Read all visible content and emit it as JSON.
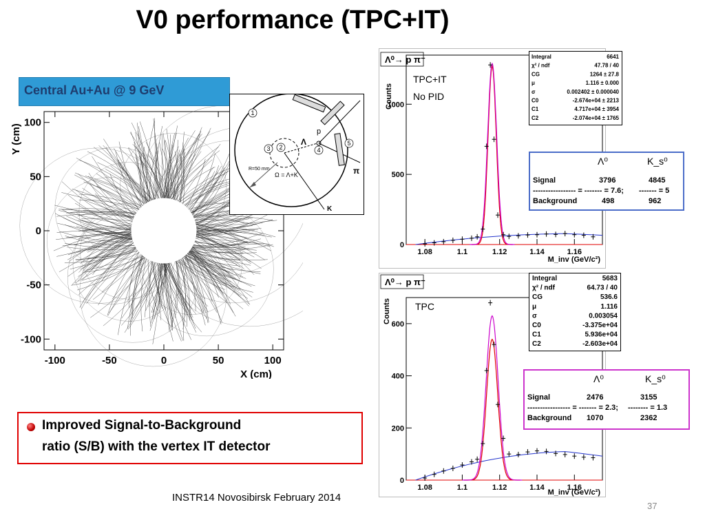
{
  "slide": {
    "title": "V0 performance (TPC+IT)",
    "event_banner": "Central Au+Au @ 9 GeV",
    "conclusion_line1": "Improved Signal-to-Background",
    "conclusion_line2": "ratio (S/B) with the vertex IT detector",
    "footer": "INSTR14 Novosibirsk February 2014",
    "page_number": "37"
  },
  "diagram": {
    "labels": [
      "1",
      "2",
      "3",
      "4",
      "5"
    ],
    "p_label": "p",
    "lambda_label": "Λ",
    "pi_label": "π",
    "k_label": "K",
    "r_label": "R=50 mm",
    "omega_label": "Ω = Λ+K"
  },
  "colors": {
    "banner": "#2f9bd6",
    "banner_text": "#1e3c6e",
    "conclusion_border": "#e00000",
    "sb_box_top": "#4a6cc8",
    "sb_box_bottom": "#cc33cc",
    "fit_red": "#e00000",
    "fit_magenta": "#cc00cc",
    "background_blue": "#2233cc"
  },
  "chart_data": [
    {
      "type": "scatter",
      "name": "event-display",
      "xlabel": "X (cm)",
      "ylabel": "Y (cm)",
      "xlim": [
        -110,
        110
      ],
      "ylim": [
        -110,
        110
      ],
      "xticks": [
        "-100",
        "-50",
        "0",
        "50",
        "100"
      ],
      "yticks": [
        "-100",
        "-50",
        "0",
        "50",
        "100"
      ],
      "inner_radius_cm": 30,
      "outer_radius_cm": 105
    },
    {
      "type": "scatter",
      "name": "mass-tpc-it",
      "title": "Λ⁰→ p π⁻",
      "annotation_line1": "TPC+IT",
      "annotation_line2": "No PID",
      "xlabel": "M_inv (GeV/c²)",
      "ylabel": "Counts",
      "xlim": [
        1.07,
        1.175
      ],
      "ylim": [
        0,
        1350
      ],
      "xticks": [
        "1.08",
        "1.1",
        "1.12",
        "1.14",
        "1.16"
      ],
      "yticks": [
        "0",
        "500",
        "1000"
      ],
      "points": {
        "x": [
          1.08,
          1.085,
          1.09,
          1.095,
          1.1,
          1.105,
          1.108,
          1.111,
          1.113,
          1.115,
          1.117,
          1.119,
          1.122,
          1.125,
          1.13,
          1.135,
          1.14,
          1.145,
          1.15,
          1.155,
          1.16,
          1.165,
          1.17
        ],
        "y": [
          5,
          12,
          20,
          30,
          38,
          45,
          55,
          110,
          700,
          1280,
          750,
          210,
          70,
          58,
          62,
          68,
          70,
          75,
          72,
          78,
          70,
          66,
          55
        ]
      },
      "stats": [
        {
          "label": "Integral",
          "value": "6641"
        },
        {
          "label": "χ² / ndf",
          "value": "47.78 / 40"
        },
        {
          "label": "CG",
          "value": "1264 ± 27.8"
        },
        {
          "label": "μ",
          "value": "1.116 ± 0.000"
        },
        {
          "label": "σ",
          "value": "0.002402 ± 0.000040"
        },
        {
          "label": "C0",
          "value": "-2.674e+04 ± 2213"
        },
        {
          "label": "C1",
          "value": "4.717e+04 ± 3954"
        },
        {
          "label": "C2",
          "value": "-2.074e+04 ± 1765"
        }
      ],
      "sb_table": {
        "col1": "Λ⁰",
        "col2": "K_s⁰",
        "signal_label": "Signal",
        "signal_lambda": "3796",
        "signal_ks": "4845",
        "ratio_line_lambda": "----------------- = ------- = 7.6;",
        "ratio_line_ks": "------- = 5",
        "background_label": "Background",
        "background_lambda": "498",
        "background_ks": "962"
      }
    },
    {
      "type": "scatter",
      "name": "mass-tpc",
      "title": "Λ⁰→ p π⁻",
      "annotation_line1": "TPC",
      "xlabel": "M_inv (GeV/c²)",
      "ylabel": "Counts",
      "xlim": [
        1.07,
        1.175
      ],
      "ylim": [
        0,
        700
      ],
      "xticks": [
        "1.08",
        "1.1",
        "1.12",
        "1.14",
        "1.16"
      ],
      "yticks": [
        "0",
        "200",
        "400",
        "600"
      ],
      "points": {
        "x": [
          1.08,
          1.085,
          1.09,
          1.095,
          1.1,
          1.105,
          1.108,
          1.111,
          1.113,
          1.115,
          1.117,
          1.119,
          1.122,
          1.125,
          1.13,
          1.135,
          1.14,
          1.145,
          1.15,
          1.155,
          1.16,
          1.165,
          1.17
        ],
        "y": [
          8,
          22,
          35,
          45,
          58,
          70,
          80,
          140,
          420,
          680,
          520,
          290,
          160,
          100,
          98,
          108,
          112,
          110,
          102,
          98,
          92,
          88,
          86
        ]
      },
      "stats": [
        {
          "label": "Integral",
          "value": "5683"
        },
        {
          "label": "χ² / ndf",
          "value": "64.73 / 40"
        },
        {
          "label": "CG",
          "value": "536.6"
        },
        {
          "label": "μ",
          "value": "1.116"
        },
        {
          "label": "σ",
          "value": "0.003054"
        },
        {
          "label": "C0",
          "value": "-3.375e+04"
        },
        {
          "label": "C1",
          "value": "5.936e+04"
        },
        {
          "label": "C2",
          "value": "-2.603e+04"
        }
      ],
      "sb_table": {
        "col1": "Λ⁰",
        "col2": "K_s⁰",
        "signal_label": "Signal",
        "signal_lambda": "2476",
        "signal_ks": "3155",
        "ratio_line_lambda": "----------------- = ------- = 2.3;",
        "ratio_line_ks": "-------- = 1.3",
        "background_label": "Background",
        "background_lambda": "1070",
        "background_ks": "2362"
      }
    }
  ]
}
